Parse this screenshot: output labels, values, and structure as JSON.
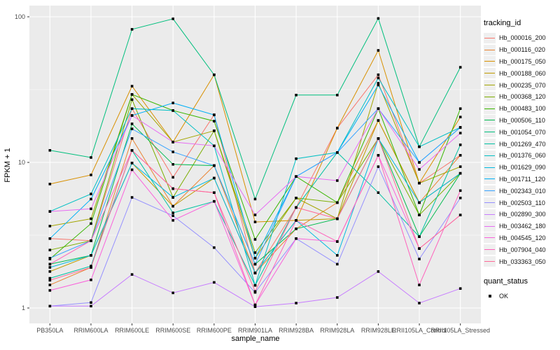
{
  "colors": {
    "panel_bg": "#EBEBEB",
    "grid": "#FFFFFF",
    "tick": "#333333",
    "axis_text": "#4D4D4D",
    "point": "#000000",
    "legend_key_bg": "#EFEFEF"
  },
  "chart_data": {
    "type": "line",
    "title": "",
    "xlabel": "sample_name",
    "ylabel": "FPKM + 1",
    "y_scale": "log10",
    "ylim": [
      0.78,
      119
    ],
    "y_ticks": [
      1,
      10,
      100
    ],
    "y_tick_labels": [
      "1",
      "10",
      "100"
    ],
    "y_minor": [
      3.162,
      31.62
    ],
    "grid": true,
    "legend_position": "right",
    "point_shape": "square",
    "categories": [
      "PB350LA",
      "RRIM600LA",
      "RRIM600LE",
      "RRIM600SE",
      "RRIM600PE",
      "RRIM901LA",
      "RRIM928BA",
      "RRIM928LA",
      "RRIM928LE",
      "RRII105LA_Control",
      "RRII105LA_Stressed"
    ],
    "legend": {
      "tracking_title": "tracking_id",
      "quant_title": "quant_status",
      "quant_items": [
        {
          "label": "OK"
        }
      ]
    },
    "series": [
      {
        "name": "Hb_000016_200",
        "color": "#F8766D",
        "values": [
          3.0,
          2.9,
          23.4,
          7.9,
          21.2,
          1.74,
          4.9,
          17.2,
          40,
          7.2,
          11.2
        ]
      },
      {
        "name": "Hb_000116_020",
        "color": "#EA8331",
        "values": [
          1.44,
          1.9,
          14.6,
          5.0,
          9.5,
          1.74,
          3.5,
          5.3,
          19.4,
          5.3,
          11.2
        ]
      },
      {
        "name": "Hb_000175_050",
        "color": "#D89000",
        "values": [
          7.1,
          8.2,
          33.4,
          13.8,
          40,
          3.9,
          4.0,
          17.2,
          58.8,
          7.2,
          20.5
        ]
      },
      {
        "name": "Hb_000188_060",
        "color": "#C09B00",
        "values": [
          1.78,
          2.3,
          9.9,
          5.0,
          7.8,
          1.74,
          4.0,
          4.1,
          19.4,
          5.3,
          8.4
        ]
      },
      {
        "name": "Hb_000235_070",
        "color": "#A3A500",
        "values": [
          3.65,
          4.1,
          29.3,
          13.8,
          16.5,
          2.2,
          5.7,
          4.1,
          35,
          7.2,
          9.35
        ]
      },
      {
        "name": "Hb_000368_120",
        "color": "#7CAE00",
        "values": [
          2.5,
          2.9,
          27,
          5.75,
          16.5,
          2.4,
          5.7,
          5.3,
          14.6,
          4.35,
          8.4
        ]
      },
      {
        "name": "Hb_000483_100",
        "color": "#39B600",
        "values": [
          2.17,
          3.8,
          29.3,
          22.7,
          19.2,
          2.96,
          8.0,
          5.3,
          23.4,
          4.35,
          23.4
        ]
      },
      {
        "name": "Hb_000506_110",
        "color": "#00BB4E",
        "values": [
          2.0,
          2.3,
          18.4,
          9.7,
          9.5,
          2.0,
          3.5,
          4.1,
          14.6,
          3.09,
          8.4
        ]
      },
      {
        "name": "Hb_001054_070",
        "color": "#00BF7D",
        "values": [
          12.1,
          10.8,
          82,
          96.8,
          40,
          5.6,
          29,
          29,
          97.5,
          12.8,
          45
        ]
      },
      {
        "name": "Hb_001269_470",
        "color": "#00C1A3",
        "values": [
          1.6,
          1.94,
          12.1,
          4.5,
          5.4,
          1.43,
          4.9,
          11.7,
          6.2,
          3.09,
          13.2
        ]
      },
      {
        "name": "Hb_001376_060",
        "color": "#00BFC4",
        "values": [
          4.6,
          6.07,
          23.4,
          22.7,
          13.0,
          1.43,
          10.6,
          11.7,
          38,
          12.8,
          17.4
        ]
      },
      {
        "name": "Hb_001629_090",
        "color": "#00BAE0",
        "values": [
          1.9,
          2.3,
          9.9,
          5.75,
          7.8,
          1.74,
          4.0,
          2.3,
          14.6,
          5.3,
          8.4
        ]
      },
      {
        "name": "Hb_001711_120",
        "color": "#00B0F6",
        "values": [
          3.0,
          5.6,
          21,
          25.6,
          21.2,
          2.2,
          8.0,
          11.7,
          34,
          10,
          17.4
        ]
      },
      {
        "name": "Hb_002343_010",
        "color": "#35A2FF",
        "values": [
          2.2,
          2.9,
          17,
          11.8,
          9.5,
          2.0,
          8.0,
          11.7,
          23.4,
          10,
          17.4
        ]
      },
      {
        "name": "Hb_002503_110",
        "color": "#9590FF",
        "values": [
          1.03,
          1.09,
          5.75,
          4.3,
          2.6,
          1.28,
          3.0,
          2.0,
          9.35,
          2.17,
          5.7
        ]
      },
      {
        "name": "Hb_002890_300",
        "color": "#C77CFF",
        "values": [
          1.03,
          1.03,
          1.7,
          1.27,
          1.5,
          1.02,
          1.08,
          1.18,
          1.78,
          1.08,
          1.36
        ]
      },
      {
        "name": "Hb_003462_180",
        "color": "#E76BF3",
        "values": [
          4.6,
          4.8,
          21,
          13.8,
          13.0,
          4.36,
          8.0,
          7.5,
          23.4,
          8.95,
          15.9
        ]
      },
      {
        "name": "Hb_004545_120",
        "color": "#FA62DB",
        "values": [
          1.32,
          1.56,
          8.9,
          4.0,
          5.4,
          1.05,
          3.0,
          2.86,
          11.2,
          2.56,
          4.35
        ]
      },
      {
        "name": "Hb_007904_040",
        "color": "#FF62BC",
        "values": [
          2.0,
          2.9,
          12.1,
          6.6,
          6.2,
          1.05,
          4.0,
          2.86,
          11.2,
          1.44,
          6.4
        ]
      },
      {
        "name": "Hb_033363_050",
        "color": "#FF6A98",
        "values": [
          1.55,
          1.9,
          12.1,
          6.6,
          6.2,
          1.3,
          4.9,
          4.1,
          14.6,
          2.56,
          4.35
        ]
      }
    ]
  }
}
